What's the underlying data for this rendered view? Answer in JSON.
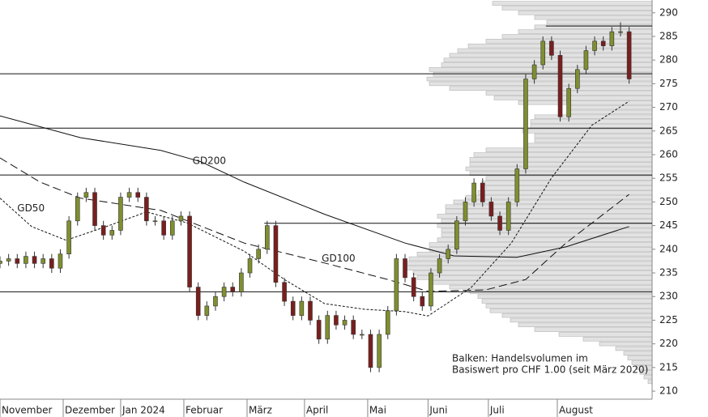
{
  "chart_data": {
    "type": "candlestick",
    "x": [
      0,
      3,
      6,
      9,
      12,
      15,
      18,
      21,
      24,
      27,
      30,
      33,
      36,
      39,
      42,
      45,
      48,
      51,
      54,
      57,
      60,
      63,
      66,
      69,
      72,
      75,
      78,
      81,
      84,
      87,
      90,
      93,
      96,
      99,
      102,
      105,
      108,
      111,
      114,
      117,
      120,
      123,
      126,
      129,
      132,
      135,
      138,
      141,
      144,
      147,
      150,
      153,
      156,
      159,
      162,
      165,
      168,
      171,
      174,
      177,
      180,
      183,
      186,
      189,
      192,
      195,
      198,
      201,
      204,
      207,
      210,
      213,
      216,
      219
    ],
    "open": [
      237,
      237.5,
      238,
      237,
      238.5,
      237,
      238,
      236,
      239,
      246,
      251,
      252,
      245,
      243,
      244,
      251,
      252,
      251,
      246,
      246,
      243,
      246,
      247,
      232,
      226,
      228,
      230,
      232,
      231,
      235,
      238,
      240,
      245,
      233,
      229,
      226,
      229,
      225,
      221,
      226,
      224,
      225,
      222,
      222,
      215,
      222,
      227,
      238,
      234,
      230,
      228,
      235,
      238,
      240,
      246,
      250,
      254,
      250,
      247,
      244,
      250,
      257,
      276,
      279,
      284,
      281,
      268,
      274,
      278,
      282,
      284,
      283,
      286,
      286
    ],
    "high": [
      238.5,
      239,
      239,
      239.5,
      239.5,
      239,
      239,
      240,
      247,
      252,
      253,
      253,
      246,
      245,
      252,
      253,
      253,
      252,
      247,
      247,
      247,
      248,
      248,
      233,
      229,
      231,
      233,
      233,
      236,
      239,
      241,
      246,
      246,
      234,
      230,
      230,
      230,
      226,
      227,
      227,
      226,
      226,
      223,
      223,
      223,
      228,
      239,
      239,
      235,
      231,
      236,
      239,
      241,
      247,
      251,
      255,
      255,
      251,
      248,
      251,
      258,
      277,
      280,
      285,
      285,
      282,
      275,
      279,
      283,
      285,
      285,
      287,
      288,
      287
    ],
    "low": [
      236,
      236.5,
      236,
      236,
      236,
      236,
      235,
      235,
      238,
      245,
      250,
      244,
      242,
      242,
      243,
      250,
      250,
      245,
      245,
      242,
      242,
      245,
      231,
      225,
      225,
      227,
      229,
      230,
      230,
      234,
      237,
      239,
      232,
      228,
      225,
      225,
      224,
      220,
      220,
      223,
      223,
      221,
      221,
      214,
      214,
      221,
      226,
      233,
      229,
      227,
      227,
      234,
      237,
      239,
      245,
      249,
      249,
      246,
      243,
      243,
      249,
      256,
      275,
      278,
      280,
      267,
      267,
      273,
      277,
      281,
      282,
      282,
      285,
      275
    ],
    "close": [
      237.5,
      238,
      237,
      238.5,
      237,
      238,
      236,
      239,
      246,
      251,
      252,
      245,
      243,
      244,
      251,
      252,
      251,
      246,
      246,
      243,
      246,
      247,
      232,
      226,
      228,
      230,
      232,
      231,
      235,
      238,
      240,
      245,
      233,
      229,
      226,
      229,
      225,
      221,
      226,
      224,
      225,
      222,
      222,
      215,
      222,
      227,
      238,
      234,
      230,
      228,
      235,
      238,
      240,
      246,
      250,
      254,
      250,
      247,
      244,
      250,
      257,
      276,
      279,
      284,
      281,
      268,
      274,
      278,
      282,
      284,
      283,
      286,
      286,
      276
    ],
    "up_color": "#7f8f2f",
    "down_color": "#7a1e1e",
    "xlim": [
      0,
      227
    ],
    "ylim": [
      208.3,
      292.7
    ],
    "xticks": [
      {
        "value": 0,
        "label": "November"
      },
      {
        "value": 22,
        "label": "Dezember"
      },
      {
        "value": 42,
        "label": "Jan 2024"
      },
      {
        "value": 64,
        "label": "Februar"
      },
      {
        "value": 86,
        "label": "März"
      },
      {
        "value": 106,
        "label": "April"
      },
      {
        "value": 128,
        "label": "Mai"
      },
      {
        "value": 149,
        "label": "Juni"
      },
      {
        "value": 170,
        "label": "Juli"
      },
      {
        "value": 194,
        "label": "August"
      }
    ],
    "yticks": [
      210,
      215,
      220,
      225,
      230,
      235,
      240,
      245,
      250,
      255,
      260,
      265,
      270,
      275,
      280,
      285,
      290
    ],
    "averages": [
      {
        "name": "GD200",
        "dash": "none",
        "x": [
          0,
          28,
          56,
          70,
          85,
          113,
          141,
          158,
          180,
          197,
          219
        ],
        "values": [
          268.2,
          263.6,
          260.9,
          258.5,
          254.2,
          247.4,
          241.3,
          238.6,
          238.3,
          240.5,
          244.8
        ]
      },
      {
        "name": "GD100",
        "dash": "10,5",
        "x": [
          0,
          14,
          28,
          56,
          85,
          113,
          135,
          149,
          169,
          183,
          197,
          219
        ],
        "values": [
          259.3,
          254.2,
          250.8,
          248.2,
          241.3,
          237.1,
          233.6,
          231.1,
          231.4,
          233.6,
          241.3,
          251.6
        ]
      },
      {
        "name": "GD50",
        "dash": "3,2",
        "x": [
          0,
          11,
          23,
          37,
          51,
          65,
          85,
          99,
          113,
          127,
          141,
          149,
          164,
          178,
          192,
          206,
          219
        ],
        "values": [
          250.8,
          244.8,
          241.9,
          244.8,
          247.9,
          245.6,
          239.6,
          233.6,
          228.5,
          227.3,
          226.8,
          225.9,
          231.9,
          241.3,
          255.1,
          266.2,
          271.3
        ]
      }
    ],
    "levels": [
      {
        "value": 287.2,
        "from": 190
      },
      {
        "value": 277.1,
        "from": 0
      },
      {
        "value": 265.6,
        "from": 0
      },
      {
        "value": 255.7,
        "from": 0
      },
      {
        "value": 245.5,
        "from": 92
      },
      {
        "value": 231,
        "from": 0
      }
    ],
    "volume_profile": {
      "prices": [
        292,
        291,
        290,
        289,
        288,
        287,
        286,
        285,
        284,
        283,
        282,
        281,
        280,
        279,
        278,
        277,
        276,
        275,
        274,
        273,
        272,
        271,
        270,
        269,
        268,
        267,
        266,
        265,
        264,
        263,
        262,
        261,
        260,
        259,
        258,
        257,
        256,
        255,
        254,
        253,
        252,
        251,
        250,
        249,
        248,
        247,
        246,
        245,
        244,
        243,
        242,
        241,
        240,
        239,
        238,
        237,
        236,
        235,
        234,
        233,
        232,
        231,
        230,
        229,
        228,
        227,
        226,
        225,
        224,
        223,
        222,
        221,
        220,
        219,
        218,
        217,
        216,
        215,
        214,
        213,
        212
      ],
      "values": [
        197,
        185,
        165,
        145,
        130,
        145,
        165,
        185,
        205,
        227,
        240,
        250,
        257,
        260,
        275,
        270,
        278,
        275,
        250,
        205,
        195,
        165,
        105,
        105,
        145,
        150,
        150,
        160,
        145,
        145,
        155,
        205,
        220,
        225,
        225,
        230,
        225,
        205,
        210,
        205,
        215,
        230,
        245,
        255,
        255,
        265,
        260,
        265,
        260,
        260,
        265,
        275,
        275,
        290,
        300,
        305,
        305,
        295,
        290,
        275,
        250,
        225,
        215,
        210,
        205,
        200,
        185,
        175,
        165,
        145,
        115,
        85,
        65,
        45,
        35,
        30,
        25,
        20,
        15,
        10,
        5
      ]
    },
    "annotations": [
      {
        "text": "GD200",
        "x": 67,
        "y": 258.6
      },
      {
        "text": "GD100",
        "x": 112,
        "y": 238.0
      },
      {
        "text": "GD50",
        "x": 6,
        "y": 248.6
      }
    ],
    "note": [
      "Balken: Handelsvolumen im",
      "Basiswert pro CHF 1.00 (seit März 2020)"
    ]
  }
}
